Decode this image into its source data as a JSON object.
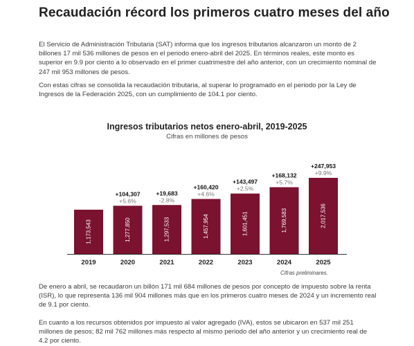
{
  "title": "Recaudación récord los primeros cuatro meses del año",
  "paragraphs": {
    "p1": "El Servicio de Administración Tributaria (SAT) informa que los ingresos tributarios alcanzaron un monto de 2 billones 17 mil 536 millones de pesos en el periodo enero-abril del 2025. En términos reales, este monto es superior en 9.9 por ciento a lo observado en el primer cuatrimestre del año anterior, con un crecimiento nominal de 247 mil 953 millones de pesos.",
    "p2": "Con estas cifras se consolida la recaudación tributaria, al superar lo programado en el periodo por la Ley de Ingresos de la Federación 2025, con un cumplimiento de 104.1 por ciento.",
    "p3": "De enero a abril, se recaudaron un billón 171 mil 684 millones de pesos por concepto de impuesto sobre la renta (ISR), lo que representa 136 mil 904 millones más que en los primeros cuatro meses de 2024 y un incremento real de 9.1 por ciento.",
    "p4": "En cuanto a los recursos obtenidos por impuesto al valor agregado (IVA), estos se ubicaron en 537 mil 251 millones de pesos; 82 mil 762 millones más respecto al mismo periodo del año anterior y un crecimiento real de 4.2 por ciento."
  },
  "colors": {
    "bar": "#7a1230",
    "increase": "#111111",
    "pct": "#777777",
    "axis": "#333333"
  },
  "chart_data": {
    "type": "bar",
    "title": "Ingresos tributarios netos enero-abril, 2019-2025",
    "subtitle": "Cifras en millones de pesos",
    "note": "Cifras preliminares.",
    "categories": [
      "2019",
      "2020",
      "2021",
      "2022",
      "2023",
      "2024",
      "2025"
    ],
    "values": [
      1173543,
      1277850,
      1297533,
      1457954,
      1601451,
      1769583,
      2017536
    ],
    "value_labels": [
      "1,173,543",
      "1,277,850",
      "1,297,533",
      "1,457,954",
      "1,601,451",
      "1,769,583",
      "2,017,536"
    ],
    "increase_labels": [
      "",
      "+104,307",
      "+19,683",
      "+160,420",
      "+143,497",
      "+168,132",
      "+247,953"
    ],
    "growth_labels": [
      "",
      "+5.6%",
      "-2.8%",
      "+4.6%",
      "+2.5%",
      "+5.7%",
      "+9.9%"
    ],
    "ylim": [
      0,
      2017536
    ],
    "grid": false
  }
}
